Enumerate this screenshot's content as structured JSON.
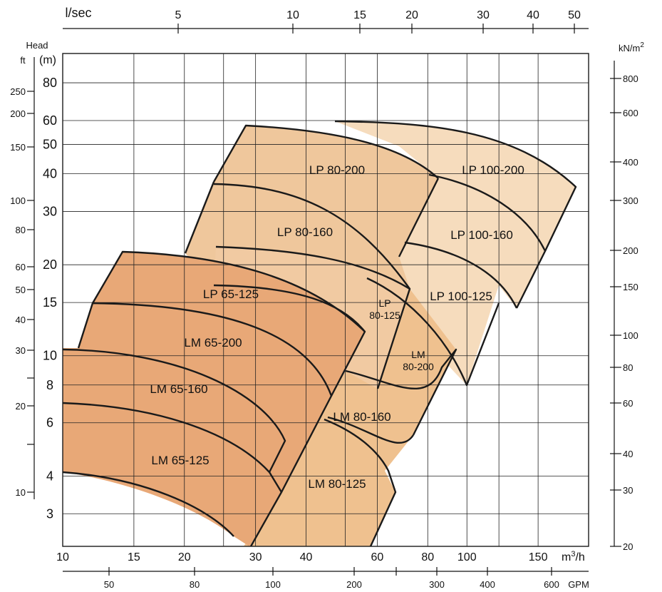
{
  "chart_data": {
    "type": "area",
    "bottom_axis": {
      "label": "m3/h",
      "ticks": [
        "10",
        "15",
        "20",
        "30",
        "40",
        "60",
        "80",
        "100",
        "150"
      ]
    },
    "gpm_axis": {
      "label": "GPM",
      "ticks": [
        "50",
        "80",
        "100",
        "200",
        "300",
        "400",
        "600"
      ]
    },
    "top_axis": {
      "label": "l/sec",
      "ticks": [
        "5",
        "10",
        "15",
        "20",
        "30",
        "40",
        "50"
      ]
    },
    "head_m_axis": {
      "label": "(m)",
      "ticks": [
        "3",
        "4",
        "6",
        "8",
        "10",
        "15",
        "20",
        "30",
        "40",
        "50",
        "60",
        "80"
      ]
    },
    "head_ft_axis": {
      "label": "ft",
      "ticks": [
        "10",
        "20",
        "30",
        "40",
        "50",
        "60",
        "80",
        "100",
        "150",
        "200",
        "250"
      ]
    },
    "head_title": "Head",
    "pressure_axis": {
      "label": "kN/m2",
      "ticks": [
        "20",
        "30",
        "40",
        "60",
        "80",
        "100",
        "150",
        "200",
        "300",
        "400",
        "600",
        "800"
      ]
    },
    "zones": [
      {
        "name": "LP 80-200",
        "color": "#efc79c"
      },
      {
        "name": "LP 80-160",
        "color": "#efc79c"
      },
      {
        "name": "LP 80-125",
        "name_lines": [
          "LP",
          "80-125"
        ],
        "color": "#efc79c"
      },
      {
        "name": "LP 100-200",
        "color": "#f6dcbd"
      },
      {
        "name": "LP 100-160",
        "color": "#f6dcbd"
      },
      {
        "name": "LP 100-125",
        "color": "#f6dcbd"
      },
      {
        "name": "LP 65-125",
        "color": "#e8a877"
      },
      {
        "name": "LM 65-200",
        "color": "#e8a877"
      },
      {
        "name": "LM 65-160",
        "color": "#e8a877"
      },
      {
        "name": "LM 65-125",
        "color": "#e8a877"
      },
      {
        "name": "LM 80-200",
        "name_lines": [
          "LM",
          "80-200"
        ],
        "color": "#efc18f"
      },
      {
        "name": "LM 80-160",
        "color": "#efc18f"
      },
      {
        "name": "LM 80-125",
        "color": "#efc18f"
      }
    ]
  }
}
